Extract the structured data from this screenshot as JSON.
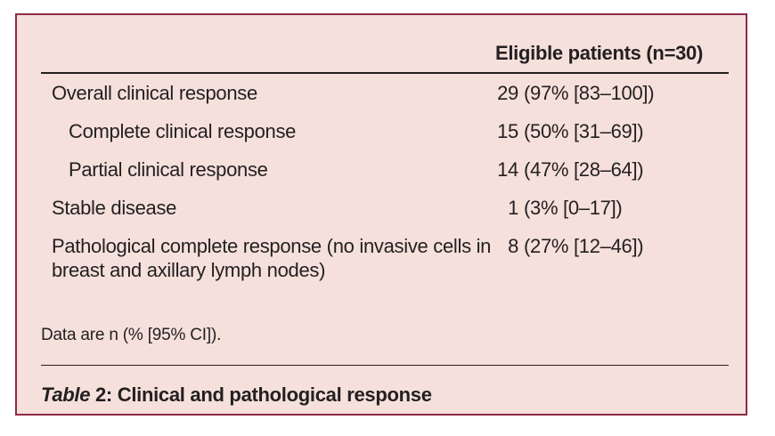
{
  "colors": {
    "page_background": "#ffffff",
    "panel_background": "#f5e0db",
    "panel_border": "#8e2a49",
    "text": "#231f20",
    "rule": "#231f20"
  },
  "table": {
    "column_header": "Eligible patients (n=30)",
    "rows": [
      {
        "label": "Overall clinical response",
        "indent": 0,
        "n": "29",
        "ci": "(97% [83–100])"
      },
      {
        "label": "Complete clinical response",
        "indent": 1,
        "n": "15",
        "ci": "(50% [31–69])"
      },
      {
        "label": "Partial clinical response",
        "indent": 1,
        "n": "14",
        "ci": "(47% [28–64])"
      },
      {
        "label": "Stable disease",
        "indent": 0,
        "n": "1",
        "ci": "(3% [0–17])"
      },
      {
        "label": "Pathological complete response (no invasive cells in breast and axillary lymph nodes)",
        "indent": 0,
        "n": "8",
        "ci": "(27% [12–46])"
      }
    ],
    "footnote": "Data are n (% [95% CI]).",
    "caption": {
      "word": "Table",
      "number": " 2: ",
      "title": "Clinical and pathological response"
    }
  },
  "chart_data": {
    "type": "table",
    "title": "Table 2: Clinical and pathological response",
    "columns": [
      "",
      "Eligible patients (n=30)"
    ],
    "rows": [
      [
        "Overall clinical response",
        "29 (97% [83–100])"
      ],
      [
        "Complete clinical response",
        "15 (50% [31–69])"
      ],
      [
        "Partial clinical response",
        "14 (47% [28–64])"
      ],
      [
        "Stable disease",
        "1 (3% [0–17])"
      ],
      [
        "Pathological complete response (no invasive cells in breast and axillary lymph nodes)",
        "8 (27% [12–46])"
      ]
    ],
    "footnote": "Data are n (% [95% CI])."
  }
}
